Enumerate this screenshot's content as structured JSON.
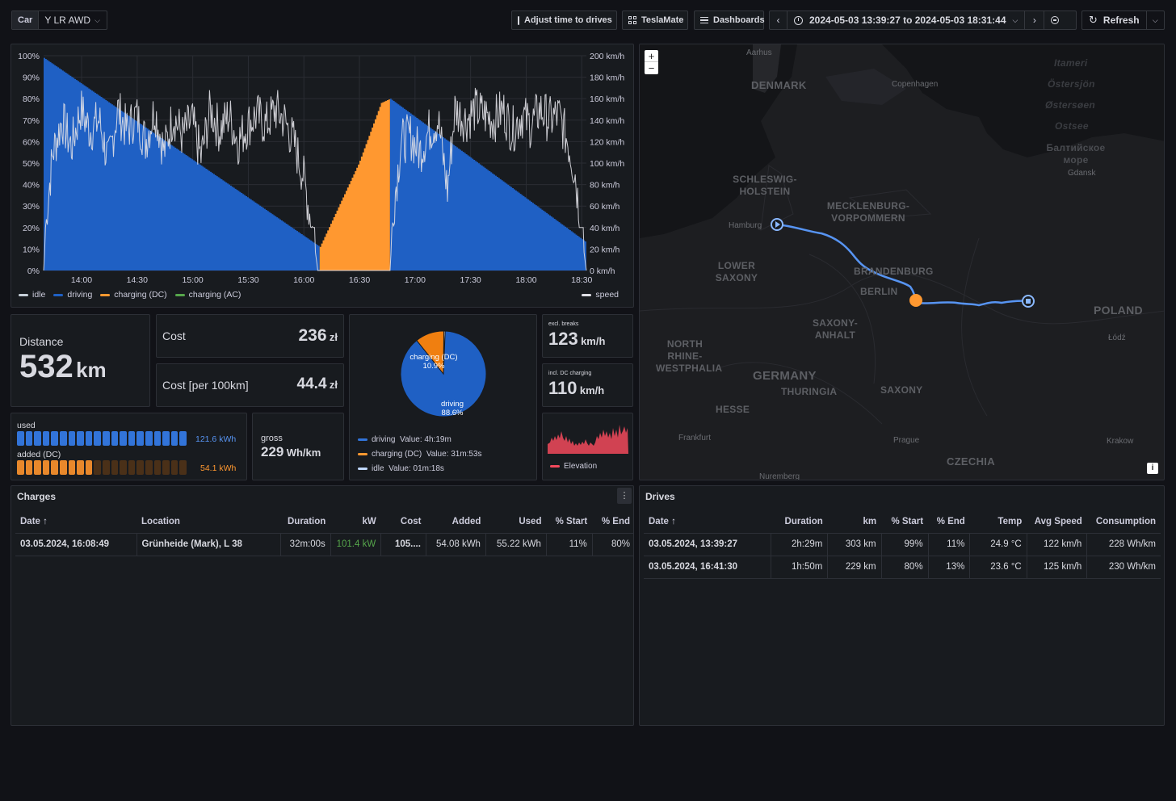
{
  "topbar": {
    "car_label": "Car",
    "car_value": "Y LR AWD",
    "adjust_label": "Adjust time to drives",
    "teslamate_label": "TeslaMate",
    "dashboards_label": "Dashboards",
    "time_range": "2024-05-03 13:39:27 to 2024-05-03 18:31:44",
    "refresh_label": "Refresh"
  },
  "chart_data": {
    "type": "area",
    "x_ticks": [
      "14:00",
      "14:30",
      "15:00",
      "15:30",
      "16:00",
      "16:30",
      "17:00",
      "17:30",
      "18:00",
      "18:30"
    ],
    "y_left_ticks": [
      "100%",
      "90%",
      "80%",
      "70%",
      "60%",
      "50%",
      "40%",
      "30%",
      "20%",
      "10%",
      "0%"
    ],
    "y_right_ticks": [
      "200 km/h",
      "180 km/h",
      "160 km/h",
      "140 km/h",
      "120 km/h",
      "100 km/h",
      "80 km/h",
      "60 km/h",
      "40 km/h",
      "20 km/h",
      "0 km/h"
    ],
    "x_range_minutes": [
      0,
      293
    ],
    "ylim_left": [
      0,
      100
    ],
    "ylim_right": [
      0,
      200
    ],
    "series": [
      {
        "name": "driving",
        "color": "#1f60c4",
        "axis": "left",
        "points": [
          [
            0,
            99
          ],
          [
            149,
            11
          ]
        ]
      },
      {
        "name": "charging (DC)",
        "color": "#ff9830",
        "axis": "left",
        "points": [
          [
            149,
            11
          ],
          [
            170,
            50
          ],
          [
            182,
            78
          ],
          [
            187,
            80
          ]
        ]
      },
      {
        "name": "driving",
        "color": "#1f60c4",
        "axis": "left",
        "points": [
          [
            187,
            80
          ],
          [
            293,
            13
          ]
        ]
      },
      {
        "name": "speed",
        "color": "#e0e0e6",
        "axis": "right",
        "points": [
          [
            0,
            0
          ],
          [
            2,
            60
          ],
          [
            5,
            110
          ],
          [
            10,
            140
          ],
          [
            15,
            115
          ],
          [
            20,
            150
          ],
          [
            25,
            130
          ],
          [
            30,
            140
          ],
          [
            35,
            100
          ],
          [
            40,
            150
          ],
          [
            45,
            130
          ],
          [
            50,
            145
          ],
          [
            55,
            120
          ],
          [
            60,
            150
          ],
          [
            65,
            110
          ],
          [
            70,
            145
          ],
          [
            75,
            125
          ],
          [
            80,
            140
          ],
          [
            85,
            105
          ],
          [
            90,
            150
          ],
          [
            95,
            130
          ],
          [
            100,
            145
          ],
          [
            105,
            120
          ],
          [
            110,
            135
          ],
          [
            115,
            145
          ],
          [
            120,
            135
          ],
          [
            125,
            150
          ],
          [
            130,
            140
          ],
          [
            135,
            120
          ],
          [
            140,
            90
          ],
          [
            145,
            40
          ],
          [
            148,
            0
          ],
          [
            187,
            0
          ],
          [
            189,
            60
          ],
          [
            193,
            120
          ],
          [
            198,
            125
          ],
          [
            203,
            110
          ],
          [
            208,
            130
          ],
          [
            213,
            140
          ],
          [
            218,
            75
          ],
          [
            222,
            150
          ],
          [
            228,
            140
          ],
          [
            233,
            150
          ],
          [
            238,
            145
          ],
          [
            243,
            140
          ],
          [
            248,
            150
          ],
          [
            253,
            130
          ],
          [
            258,
            145
          ],
          [
            263,
            135
          ],
          [
            268,
            150
          ],
          [
            273,
            140
          ],
          [
            278,
            145
          ],
          [
            283,
            120
          ],
          [
            287,
            90
          ],
          [
            290,
            40
          ],
          [
            293,
            0
          ]
        ]
      }
    ],
    "legend": [
      "idle",
      "driving",
      "charging (DC)",
      "charging (AC)",
      "speed"
    ],
    "legend_colors": [
      "#c7d0d9",
      "#1f60c4",
      "#ff9830",
      "#56a64b",
      "#e0e0e6"
    ]
  },
  "stats": {
    "distance_label": "Distance",
    "distance_value": "532",
    "distance_unit": "km",
    "cost_label": "Cost",
    "cost_value": "236",
    "cost_unit": "zł",
    "cost100_label": "Cost [per 100km]",
    "cost100_value": "44.4",
    "cost100_unit": "zł",
    "used_label": "used",
    "used_value": "121.6 kWh",
    "used_fraction": 1.0,
    "added_label": "added (DC)",
    "added_value": "54.1 kWh",
    "added_fraction": 0.45,
    "gross_label": "gross",
    "gross_value": "229",
    "gross_unit": "Wh/km",
    "excl_label": "excl. breaks",
    "excl_value": "123",
    "excl_unit": "km/h",
    "incl_label": "incl. DC charging",
    "incl_value": "110",
    "incl_unit": "km/h",
    "elevation_label": "Elevation"
  },
  "pie": {
    "slices": [
      {
        "name": "driving",
        "pct": 88.6,
        "color": "#1f60c4",
        "label": "driving",
        "pct_label": "88.6%"
      },
      {
        "name": "charging (DC)",
        "pct": 10.9,
        "color": "#f07f10",
        "label": "charging (DC)",
        "pct_label": "10.9%"
      },
      {
        "name": "idle",
        "pct": 0.5,
        "color": "#c7d0d9"
      }
    ],
    "legend": [
      {
        "name": "driving",
        "value": "Value: 4h:19m",
        "color": "#3274d9"
      },
      {
        "name": "charging (DC)",
        "value": "Value: 31m:53s",
        "color": "#ff9830"
      },
      {
        "name": "idle",
        "value": "Value: 01m:18s",
        "color": "#c0d8ff"
      }
    ]
  },
  "map": {
    "zoom_in": "+",
    "zoom_out": "−",
    "info": "i",
    "regions": [
      "DENMARK",
      "SCHLESWIG-\nHOLSTEIN",
      "MECKLENBURG-\nVORPOMMERN",
      "LOWER\nSAXONY",
      "BRANDENBURG",
      "BERLIN",
      "SAXONY-\nANHALT",
      "NORTH\nRHINE-\nWESTPHALIA",
      "GERMANY",
      "THURINGIA",
      "SAXONY",
      "HESSE",
      "CZECHIA",
      "POLAND",
      "Itameri",
      "Östersjön",
      "Østersøen",
      "Ostsee",
      "Балтийское\nморе"
    ],
    "cities": [
      "Aarhus",
      "Copenhagen",
      "Hamburg",
      "Gdansk",
      "Łódź",
      "Frankfurt",
      "Prague",
      "Krakow",
      "Nuremberg"
    ]
  },
  "charges": {
    "title": "Charges",
    "columns": [
      "Date",
      "Location",
      "Duration",
      "kW",
      "Cost",
      "Added",
      "Used",
      "% Start",
      "% End"
    ],
    "rows": [
      [
        "03.05.2024, 16:08:49",
        "Grünheide (Mark), L 38",
        "32m:00s",
        "101.4 kW",
        "105....",
        "54.08 kWh",
        "55.22 kWh",
        "11%",
        "80%"
      ]
    ]
  },
  "drives": {
    "title": "Drives",
    "columns": [
      "Date",
      "Duration",
      "km",
      "% Start",
      "% End",
      "Temp",
      "Avg Speed",
      "Consumption"
    ],
    "rows": [
      [
        "03.05.2024, 13:39:27",
        "2h:29m",
        "303 km",
        "99%",
        "11%",
        "24.9 °C",
        "122 km/h",
        "228 Wh/km"
      ],
      [
        "03.05.2024, 16:41:30",
        "1h:50m",
        "229 km",
        "80%",
        "13%",
        "23.6 °C",
        "125 km/h",
        "230 Wh/km"
      ]
    ]
  }
}
